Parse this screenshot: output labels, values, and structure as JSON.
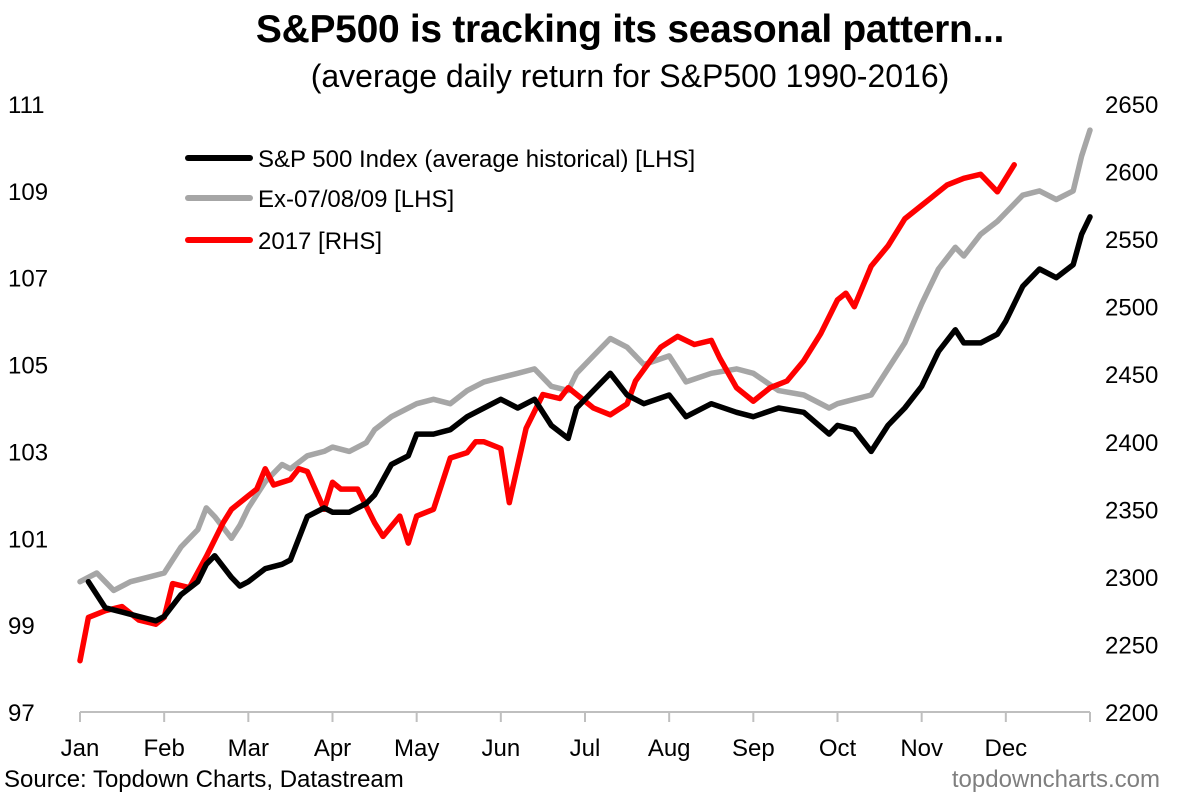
{
  "chart_data": {
    "type": "line",
    "title": "S&P500 is tracking its seasonal pattern...",
    "subtitle": "(average daily return for S&P500 1990-2016)",
    "x_month_labels": [
      "Jan",
      "Feb",
      "Mar",
      "Apr",
      "May",
      "Jun",
      "Jul",
      "Aug",
      "Sep",
      "Oct",
      "Nov",
      "Dec"
    ],
    "x_range": [
      0,
      12
    ],
    "y_left": {
      "range": [
        97,
        111
      ],
      "ticks": [
        97,
        99,
        101,
        103,
        105,
        107,
        109,
        111
      ]
    },
    "y_right": {
      "range": [
        2200,
        2650
      ],
      "ticks": [
        2200,
        2250,
        2300,
        2350,
        2400,
        2450,
        2500,
        2550,
        2600,
        2650
      ]
    },
    "legend_position": "top-left",
    "series": [
      {
        "name": "S&P 500 Index (average historical) [LHS]",
        "axis": "left",
        "color": "#000000",
        "x": [
          0.1,
          0.3,
          0.5,
          0.7,
          0.9,
          1.0,
          1.2,
          1.4,
          1.5,
          1.6,
          1.8,
          1.9,
          2.0,
          2.2,
          2.4,
          2.5,
          2.7,
          2.9,
          3.0,
          3.2,
          3.4,
          3.5,
          3.7,
          3.9,
          4.0,
          4.2,
          4.4,
          4.6,
          4.8,
          5.0,
          5.2,
          5.4,
          5.6,
          5.8,
          5.9,
          6.1,
          6.3,
          6.5,
          6.7,
          7.0,
          7.2,
          7.5,
          7.8,
          8.0,
          8.3,
          8.6,
          8.9,
          9.0,
          9.2,
          9.4,
          9.6,
          9.8,
          10.0,
          10.2,
          10.4,
          10.5,
          10.7,
          10.9,
          11.0,
          11.2,
          11.4,
          11.6,
          11.8,
          11.9,
          12.0
        ],
        "values": [
          100.0,
          99.4,
          99.3,
          99.2,
          99.1,
          99.2,
          99.7,
          100.0,
          100.4,
          100.6,
          100.1,
          99.9,
          100.0,
          100.3,
          100.4,
          100.5,
          101.5,
          101.7,
          101.6,
          101.6,
          101.8,
          102.0,
          102.7,
          102.9,
          103.4,
          103.4,
          103.5,
          103.8,
          104.0,
          104.2,
          104.0,
          104.2,
          103.6,
          103.3,
          104.0,
          104.4,
          104.8,
          104.3,
          104.1,
          104.3,
          103.8,
          104.1,
          103.9,
          103.8,
          104.0,
          103.9,
          103.4,
          103.6,
          103.5,
          103.0,
          103.6,
          104.0,
          104.5,
          105.3,
          105.8,
          105.5,
          105.5,
          105.7,
          106.0,
          106.8,
          107.2,
          107.0,
          107.3,
          108.0,
          108.4
        ]
      },
      {
        "name": "Ex-07/08/09 [LHS]",
        "axis": "left",
        "color": "#a6a6a6",
        "x": [
          0.0,
          0.2,
          0.4,
          0.6,
          0.8,
          1.0,
          1.2,
          1.4,
          1.5,
          1.6,
          1.8,
          1.9,
          2.0,
          2.2,
          2.4,
          2.5,
          2.7,
          2.9,
          3.0,
          3.2,
          3.4,
          3.5,
          3.7,
          3.9,
          4.0,
          4.2,
          4.4,
          4.6,
          4.8,
          5.0,
          5.2,
          5.4,
          5.6,
          5.8,
          5.9,
          6.1,
          6.3,
          6.5,
          6.7,
          7.0,
          7.2,
          7.5,
          7.8,
          8.0,
          8.3,
          8.6,
          8.9,
          9.0,
          9.2,
          9.4,
          9.6,
          9.8,
          10.0,
          10.2,
          10.4,
          10.5,
          10.7,
          10.9,
          11.0,
          11.2,
          11.4,
          11.6,
          11.8,
          11.9,
          12.0
        ],
        "values": [
          100.0,
          100.2,
          99.8,
          100.0,
          100.1,
          100.2,
          100.8,
          101.2,
          101.7,
          101.5,
          101.0,
          101.3,
          101.7,
          102.3,
          102.7,
          102.6,
          102.9,
          103.0,
          103.1,
          103.0,
          103.2,
          103.5,
          103.8,
          104.0,
          104.1,
          104.2,
          104.1,
          104.4,
          104.6,
          104.7,
          104.8,
          104.9,
          104.5,
          104.4,
          104.8,
          105.2,
          105.6,
          105.4,
          105.0,
          105.2,
          104.6,
          104.8,
          104.9,
          104.8,
          104.4,
          104.3,
          104.0,
          104.1,
          104.2,
          104.3,
          104.9,
          105.5,
          106.4,
          107.2,
          107.7,
          107.5,
          108.0,
          108.3,
          108.5,
          108.9,
          109.0,
          108.8,
          109.0,
          109.8,
          110.4
        ]
      },
      {
        "name": "2017 [RHS]",
        "axis": "right",
        "color": "#ff0000",
        "x": [
          0.0,
          0.1,
          0.3,
          0.5,
          0.7,
          0.9,
          1.0,
          1.1,
          1.3,
          1.5,
          1.7,
          1.8,
          2.0,
          2.1,
          2.2,
          2.3,
          2.5,
          2.6,
          2.7,
          2.9,
          3.0,
          3.1,
          3.3,
          3.5,
          3.6,
          3.8,
          3.9,
          4.0,
          4.2,
          4.4,
          4.6,
          4.7,
          4.8,
          5.0,
          5.1,
          5.3,
          5.5,
          5.7,
          5.8,
          6.0,
          6.1,
          6.3,
          6.5,
          6.6,
          6.8,
          6.9,
          7.1,
          7.3,
          7.5,
          7.6,
          7.8,
          8.0,
          8.2,
          8.4,
          8.6,
          8.8,
          9.0,
          9.1,
          9.2,
          9.4,
          9.6,
          9.8,
          10.0,
          10.1,
          10.3,
          10.5,
          10.7,
          10.9,
          11.0,
          11.1
        ],
        "values": [
          2238,
          2270,
          2275,
          2278,
          2268,
          2265,
          2270,
          2295,
          2292,
          2315,
          2340,
          2350,
          2360,
          2365,
          2380,
          2368,
          2372,
          2380,
          2378,
          2350,
          2370,
          2365,
          2365,
          2340,
          2330,
          2345,
          2325,
          2345,
          2350,
          2388,
          2392,
          2400,
          2400,
          2395,
          2355,
          2410,
          2435,
          2432,
          2440,
          2430,
          2425,
          2420,
          2428,
          2445,
          2462,
          2470,
          2478,
          2472,
          2475,
          2462,
          2440,
          2430,
          2440,
          2445,
          2460,
          2480,
          2505,
          2510,
          2500,
          2530,
          2545,
          2565,
          2575,
          2580,
          2590,
          2595,
          2598,
          2585,
          2595,
          2605
        ]
      }
    ]
  },
  "footer": {
    "source": "Source: Topdown Charts, Datastream",
    "brand": "topdowncharts.com"
  }
}
